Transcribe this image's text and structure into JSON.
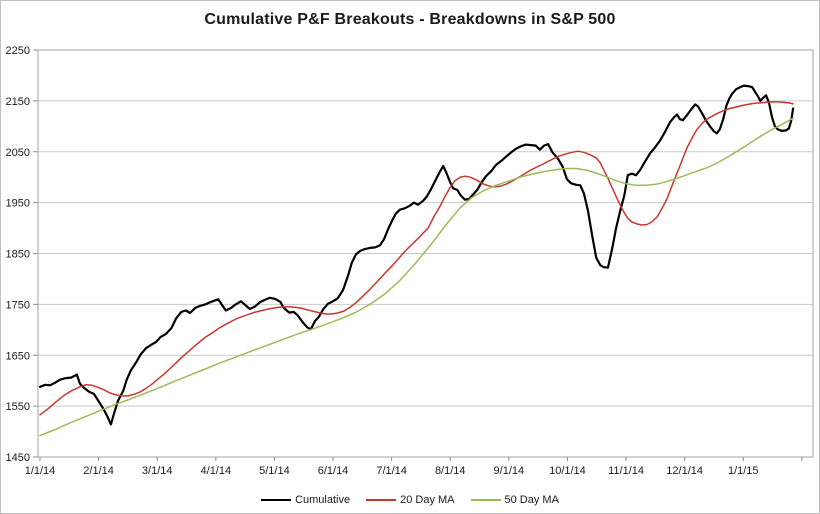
{
  "chart_data": {
    "type": "line",
    "title": "Cumulative P&F Breakouts - Breakdowns in S&P 500",
    "xlabel": "",
    "ylabel": "",
    "x_unit": "months since 1/1/2014",
    "x_tick_labels": [
      "1/1/14",
      "2/1/14",
      "3/1/14",
      "4/1/14",
      "5/1/14",
      "6/1/14",
      "7/1/14",
      "8/1/14",
      "9/1/14",
      "10/1/14",
      "11/1/14",
      "12/1/14",
      "1/1/15"
    ],
    "xlim_months": [
      0,
      13.19
    ],
    "ylim": [
      1450,
      2250
    ],
    "y_tick_step": 100,
    "y_tick_labels": [
      "1450",
      "1550",
      "1650",
      "1750",
      "1850",
      "1950",
      "2050",
      "2150",
      "2250"
    ],
    "grid": "horizontal",
    "legend_position": "bottom",
    "style": {
      "grid_color": "#c9c9c9",
      "axis_color": "#a3a3a3",
      "tick_color": "#8c8c8c",
      "text_color": "#1a1a1a",
      "background": "#ffffff"
    },
    "series": [
      {
        "name": "Cumulative",
        "color": "#000000",
        "width": 2.2,
        "x": [
          0,
          0.09,
          0.17,
          0.26,
          0.34,
          0.44,
          0.53,
          0.63,
          0.68,
          0.75,
          0.84,
          0.92,
          1.01,
          1.09,
          1.16,
          1.21,
          1.26,
          1.33,
          1.42,
          1.48,
          1.55,
          1.64,
          1.72,
          1.81,
          1.89,
          1.98,
          2.06,
          2.15,
          2.24,
          2.32,
          2.41,
          2.49,
          2.56,
          2.65,
          2.73,
          2.82,
          2.9,
          2.99,
          3.04,
          3.11,
          3.17,
          3.26,
          3.34,
          3.43,
          3.52,
          3.58,
          3.67,
          3.75,
          3.84,
          3.92,
          4.01,
          4.1,
          4.16,
          4.25,
          4.33,
          4.4,
          4.49,
          4.56,
          4.62,
          4.69,
          4.76,
          4.83,
          4.91,
          5,
          5.08,
          5.17,
          5.26,
          5.32,
          5.39,
          5.46,
          5.55,
          5.63,
          5.72,
          5.8,
          5.87,
          5.94,
          6.01,
          6.07,
          6.14,
          6.23,
          6.31,
          6.38,
          6.45,
          6.54,
          6.6,
          6.67,
          6.74,
          6.81,
          6.88,
          6.93,
          7,
          7.05,
          7.12,
          7.18,
          7.25,
          7.32,
          7.39,
          7.46,
          7.53,
          7.61,
          7.7,
          7.78,
          7.87,
          7.95,
          8.04,
          8.12,
          8.21,
          8.29,
          8.38,
          8.46,
          8.53,
          8.6,
          8.67,
          8.75,
          8.84,
          8.92,
          8.99,
          9.06,
          9.15,
          9.22,
          9.28,
          9.35,
          9.42,
          9.49,
          9.56,
          9.62,
          9.69,
          9.76,
          9.83,
          9.9,
          9.97,
          10.03,
          10.1,
          10.17,
          10.24,
          10.32,
          10.41,
          10.49,
          10.58,
          10.67,
          10.75,
          10.82,
          10.87,
          10.92,
          10.97,
          11.04,
          11.11,
          11.18,
          11.23,
          11.3,
          11.36,
          11.43,
          11.5,
          11.55,
          11.6,
          11.66,
          11.71,
          11.76,
          11.81,
          11.88,
          11.95,
          12.01,
          12.08,
          12.15,
          12.2,
          12.25,
          12.29,
          12.34,
          12.39,
          12.44,
          12.49,
          12.54,
          12.59,
          12.66,
          12.73,
          12.78,
          12.82,
          12.85
        ],
        "y": [
          1588,
          1592,
          1591,
          1596,
          1602,
          1605,
          1606,
          1612,
          1594,
          1586,
          1578,
          1574,
          1558,
          1543,
          1527,
          1514,
          1534,
          1560,
          1580,
          1602,
          1620,
          1636,
          1652,
          1664,
          1670,
          1676,
          1686,
          1692,
          1703,
          1722,
          1735,
          1738,
          1733,
          1743,
          1747,
          1750,
          1754,
          1758,
          1760,
          1748,
          1738,
          1743,
          1750,
          1756,
          1747,
          1741,
          1746,
          1754,
          1759,
          1763,
          1761,
          1755,
          1743,
          1734,
          1735,
          1728,
          1714,
          1705,
          1701,
          1717,
          1726,
          1740,
          1751,
          1756,
          1762,
          1778,
          1808,
          1832,
          1848,
          1855,
          1859,
          1861,
          1862,
          1866,
          1878,
          1898,
          1915,
          1928,
          1936,
          1939,
          1944,
          1950,
          1946,
          1954,
          1962,
          1976,
          1992,
          2008,
          2022,
          2010,
          1990,
          1978,
          1975,
          1964,
          1956,
          1957,
          1966,
          1975,
          1989,
          2002,
          2012,
          2024,
          2032,
          2040,
          2049,
          2056,
          2061,
          2064,
          2063,
          2062,
          2054,
          2062,
          2065,
          2048,
          2036,
          2020,
          1996,
          1988,
          1985,
          1984,
          1968,
          1934,
          1886,
          1842,
          1827,
          1823,
          1822,
          1858,
          1900,
          1934,
          1964,
          2004,
          2007,
          2004,
          2014,
          2030,
          2047,
          2058,
          2072,
          2090,
          2108,
          2118,
          2123,
          2114,
          2112,
          2122,
          2133,
          2143,
          2139,
          2125,
          2112,
          2100,
          2090,
          2086,
          2094,
          2115,
          2140,
          2154,
          2164,
          2173,
          2177,
          2180,
          2179,
          2177,
          2168,
          2159,
          2150,
          2156,
          2161,
          2146,
          2118,
          2100,
          2094,
          2091,
          2092,
          2096,
          2112,
          2135
        ]
      },
      {
        "name": "20 Day MA",
        "color": "#c8382e",
        "width": 1.5,
        "x": [
          0,
          0.14,
          0.27,
          0.41,
          0.55,
          0.68,
          0.78,
          0.89,
          0.99,
          1.09,
          1.19,
          1.3,
          1.4,
          1.5,
          1.6,
          1.71,
          1.81,
          1.91,
          2.01,
          2.12,
          2.22,
          2.32,
          2.42,
          2.53,
          2.63,
          2.73,
          2.83,
          2.94,
          3.04,
          3.14,
          3.24,
          3.34,
          3.45,
          3.55,
          3.65,
          3.75,
          3.86,
          3.96,
          4.06,
          4.16,
          4.27,
          4.37,
          4.47,
          4.57,
          4.68,
          4.78,
          4.88,
          4.98,
          5.08,
          5.19,
          5.29,
          5.39,
          5.49,
          5.6,
          5.7,
          5.8,
          5.9,
          6.01,
          6.11,
          6.21,
          6.31,
          6.42,
          6.52,
          6.62,
          6.72,
          6.83,
          6.91,
          7,
          7.08,
          7.17,
          7.25,
          7.34,
          7.44,
          7.54,
          7.65,
          7.75,
          7.85,
          7.95,
          8.05,
          8.16,
          8.26,
          8.36,
          8.46,
          8.57,
          8.67,
          8.77,
          8.87,
          8.98,
          9.08,
          9.18,
          9.28,
          9.39,
          9.49,
          9.56,
          9.62,
          9.69,
          9.76,
          9.83,
          9.9,
          9.97,
          10.03,
          10.1,
          10.19,
          10.27,
          10.36,
          10.44,
          10.53,
          10.61,
          10.7,
          10.78,
          10.87,
          10.96,
          11.04,
          11.13,
          11.21,
          11.3,
          11.38,
          11.47,
          11.57,
          11.67,
          11.77,
          11.88,
          11.98,
          12.08,
          12.18,
          12.29,
          12.39,
          12.49,
          12.59,
          12.7,
          12.78,
          12.85
        ],
        "y": [
          1533,
          1545,
          1558,
          1571,
          1581,
          1588,
          1592,
          1591,
          1587,
          1582,
          1576,
          1572,
          1570,
          1570,
          1573,
          1578,
          1585,
          1593,
          1603,
          1613,
          1624,
          1635,
          1646,
          1657,
          1667,
          1677,
          1686,
          1694,
          1702,
          1709,
          1715,
          1721,
          1726,
          1730,
          1734,
          1737,
          1740,
          1742,
          1744,
          1745,
          1745,
          1744,
          1742,
          1739,
          1736,
          1733,
          1731,
          1731,
          1733,
          1737,
          1744,
          1753,
          1764,
          1776,
          1788,
          1800,
          1813,
          1826,
          1839,
          1852,
          1864,
          1876,
          1888,
          1900,
          1922,
          1944,
          1962,
          1980,
          1993,
          2000,
          2002,
          2000,
          1995,
          1988,
          1983,
          1981,
          1982,
          1986,
          1992,
          1999,
          2006,
          2013,
          2019,
          2025,
          2031,
          2037,
          2042,
          2046,
          2049,
          2051,
          2049,
          2044,
          2038,
          2028,
          2014,
          1998,
          1980,
          1962,
          1945,
          1930,
          1919,
          1912,
          1908,
          1906,
          1907,
          1912,
          1922,
          1938,
          1958,
          1982,
          2008,
          2034,
          2058,
          2078,
          2094,
          2106,
          2114,
          2120,
          2126,
          2131,
          2135,
          2138,
          2141,
          2143,
          2145,
          2146,
          2147,
          2148,
          2148,
          2147,
          2146,
          2144
        ]
      },
      {
        "name": "50 Day MA",
        "color": "#9bbb59",
        "width": 1.5,
        "x": [
          0,
          0.26,
          0.51,
          0.77,
          1.02,
          1.28,
          1.54,
          1.79,
          2.05,
          2.3,
          2.56,
          2.82,
          3.07,
          3.33,
          3.58,
          3.84,
          4.1,
          4.35,
          4.61,
          4.86,
          5.12,
          5.38,
          5.63,
          5.89,
          6.14,
          6.4,
          6.66,
          6.91,
          7.17,
          7.37,
          7.58,
          7.78,
          7.99,
          8.19,
          8.4,
          8.6,
          8.81,
          8.98,
          9.15,
          9.32,
          9.49,
          9.66,
          9.83,
          10,
          10.17,
          10.34,
          10.51,
          10.68,
          10.85,
          11.02,
          11.19,
          11.37,
          11.54,
          11.71,
          11.88,
          12.05,
          12.22,
          12.39,
          12.56,
          12.73,
          12.85
        ],
        "y": [
          1492,
          1504,
          1517,
          1529,
          1541,
          1553,
          1564,
          1575,
          1587,
          1599,
          1611,
          1623,
          1635,
          1646,
          1657,
          1668,
          1679,
          1690,
          1700,
          1710,
          1721,
          1734,
          1750,
          1771,
          1797,
          1830,
          1866,
          1904,
          1940,
          1960,
          1974,
          1984,
          1992,
          2000,
          2006,
          2011,
          2015,
          2017,
          2017,
          2014,
          2008,
          2001,
          1993,
          1987,
          1984,
          1984,
          1986,
          1991,
          1997,
          2004,
          2011,
          2018,
          2027,
          2038,
          2050,
          2062,
          2075,
          2087,
          2098,
          2108,
          2116
        ]
      }
    ]
  }
}
